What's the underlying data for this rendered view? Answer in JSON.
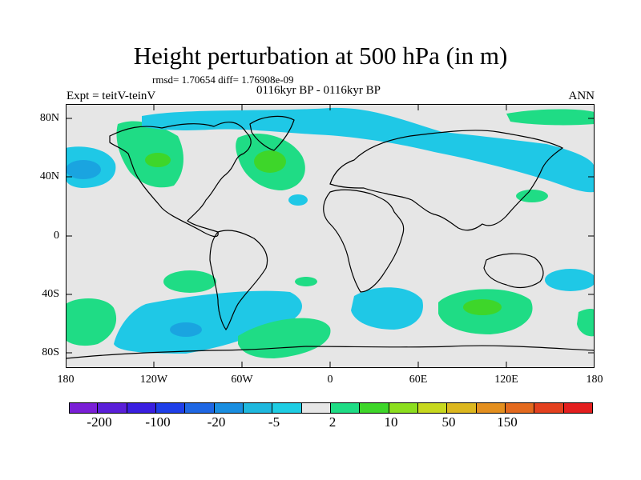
{
  "title": "Height perturbation at 500 hPa (in m)",
  "stats": "rmsd= 1.70654 diff= 1.76908e-09",
  "left_label": "Expt = teitV-teinV",
  "center_label": "0116kyr BP - 0116kyr BP",
  "right_label": "ANN",
  "lat_labels": [
    "80N",
    "40N",
    "0",
    "40S",
    "80S"
  ],
  "lon_labels": [
    "180",
    "120W",
    "60W",
    "0",
    "60E",
    "120E",
    "180"
  ],
  "colorbar": {
    "labels": [
      "-200",
      "-100",
      "-20",
      "-5",
      "2",
      "10",
      "50",
      "150"
    ],
    "colors": [
      "#7a1fd6",
      "#5a1fd8",
      "#3a1fe0",
      "#1f3fe8",
      "#1f67e3",
      "#1a8ee0",
      "#1fb8de",
      "#1fcde3",
      "#e6e6e6",
      "#1fdc85",
      "#3ed62a",
      "#8cde1f",
      "#c7d81f",
      "#dcb71f",
      "#e38f1f",
      "#e36a1f",
      "#e3411f",
      "#e31f1f"
    ]
  },
  "map": {
    "background": "#e6e6e6",
    "shade_colors": {
      "light_blue": "#1fc8e6",
      "mid_blue": "#1aa4e0",
      "light_green": "#1fdc85",
      "mid_green": "#3ed62a"
    }
  }
}
